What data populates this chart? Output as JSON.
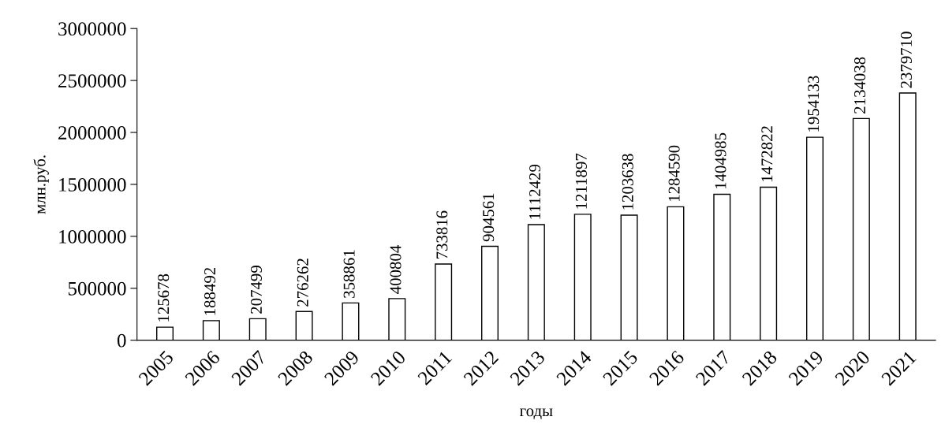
{
  "chart_data": {
    "type": "bar",
    "xlabel": "годы",
    "ylabel": "млн.руб.",
    "categories": [
      "2005",
      "2006",
      "2007",
      "2008",
      "2009",
      "2010",
      "2011",
      "2012",
      "2013",
      "2014",
      "2015",
      "2016",
      "2017",
      "2018",
      "2019",
      "2020",
      "2021"
    ],
    "values": [
      125678,
      188492,
      207499,
      276262,
      358861,
      400804,
      733816,
      904561,
      1112429,
      1211897,
      1203638,
      1284590,
      1404985,
      1472822,
      1954133,
      2134038,
      2379710
    ],
    "color": "#ffffff",
    "ylim": [
      0,
      3000000
    ],
    "yticks": [
      0,
      500000,
      1000000,
      1500000,
      2000000,
      2500000,
      3000000
    ],
    "data_labels": true,
    "grid": false,
    "legend": false
  }
}
